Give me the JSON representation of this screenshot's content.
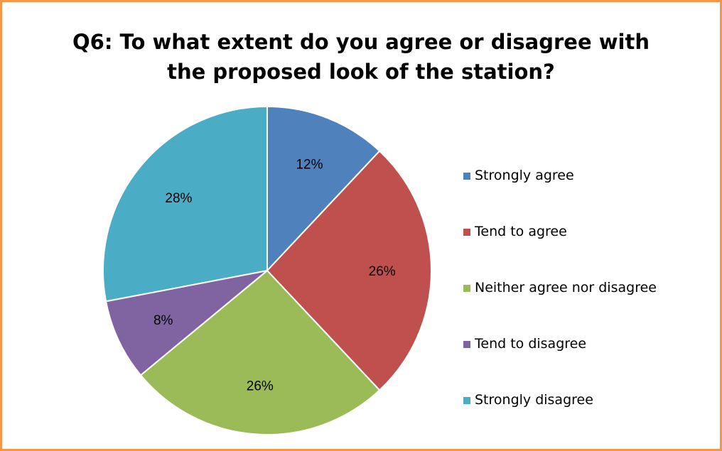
{
  "chart_data": {
    "type": "pie",
    "title": [
      "Q6: To what extent do you agree or disagree with",
      "the proposed look of the station?"
    ],
    "categories": [
      "Strongly agree",
      "Tend to agree",
      "Neither agree nor disagree",
      "Tend to disagree",
      "Strongly disagree"
    ],
    "values": [
      12,
      26,
      26,
      8,
      28
    ],
    "data_labels": [
      "12%",
      "26%",
      "26%",
      "8%",
      "28%"
    ],
    "colors": [
      "#4f81bd",
      "#c0504d",
      "#9bbb59",
      "#8064a2",
      "#4bacc6"
    ],
    "legend_position": "right",
    "start_angle": "12 o'clock",
    "direction": "clockwise"
  },
  "frame": {
    "border_color": "#f79646"
  }
}
